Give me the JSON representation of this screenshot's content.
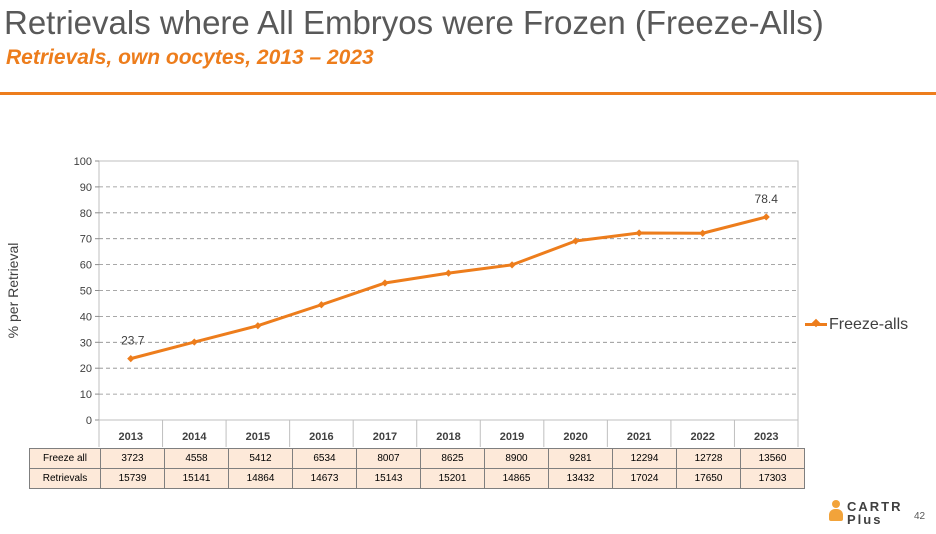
{
  "header": {
    "title": "Retrievals where All Embryos were Frozen (Freeze-Alls)",
    "subtitle": "Retrievals, own oocytes, 2013 – 2023"
  },
  "chart_data": {
    "type": "line",
    "title": "",
    "ylabel": "% per Retrieval",
    "xlabel": "",
    "ylim": [
      0,
      100
    ],
    "yticks": [
      0,
      10,
      20,
      30,
      40,
      50,
      60,
      70,
      80,
      90,
      100
    ],
    "grid": true,
    "legend_position": "right",
    "categories": [
      "2013",
      "2014",
      "2015",
      "2016",
      "2017",
      "2018",
      "2019",
      "2020",
      "2021",
      "2022",
      "2023"
    ],
    "series": [
      {
        "name": "Freeze-alls",
        "color": "#ED7D1C",
        "values": [
          23.7,
          30.1,
          36.4,
          44.5,
          52.9,
          56.7,
          59.9,
          69.1,
          72.2,
          72.1,
          78.4
        ]
      }
    ],
    "data_labels": [
      {
        "index": 0,
        "text": "23.7"
      },
      {
        "index": 10,
        "text": "78.4"
      }
    ],
    "table": {
      "rows": [
        {
          "label": "Freeze all",
          "values": [
            "3723",
            "4558",
            "5412",
            "6534",
            "8007",
            "8625",
            "8900",
            "9281",
            "12294",
            "12728",
            "13560"
          ]
        },
        {
          "label": "Retrievals",
          "values": [
            "15739",
            "15141",
            "14864",
            "14673",
            "15143",
            "15201",
            "14865",
            "13432",
            "17024",
            "17650",
            "17303"
          ]
        }
      ]
    }
  },
  "footer": {
    "logo_text_1": "CARTR",
    "logo_text_2": "Plus",
    "page_number": "42"
  }
}
